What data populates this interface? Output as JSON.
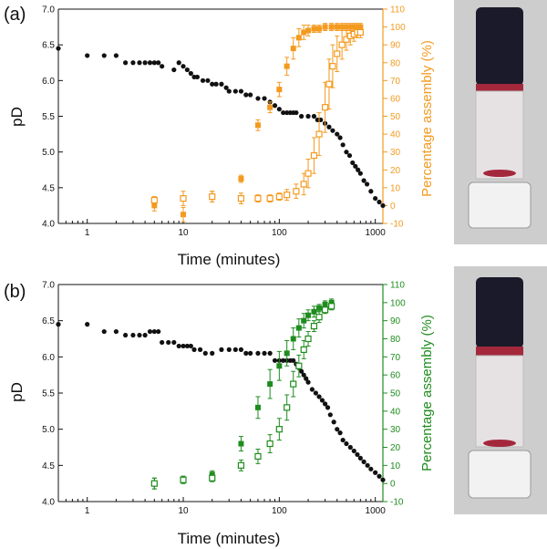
{
  "panels": [
    {
      "label": "(a)",
      "accent": "#F39A1F",
      "xlabel": "Time (minutes)",
      "ylabel_left": "pD",
      "ylabel_right": "Percentage assembly (%)"
    },
    {
      "label": "(b)",
      "accent": "#1E8C1E",
      "xlabel": "Time (minutes)",
      "ylabel_left": "pD",
      "ylabel_right": "Percentage assembly (%)"
    }
  ],
  "chart_data": [
    {
      "type": "scatter",
      "panel": "(a)",
      "xlabel": "Time (minutes)",
      "ylabel": "pD",
      "y2label": "Percentage assembly (%)",
      "xscale": "log",
      "xlim": [
        0.5,
        1200
      ],
      "ylim": [
        4.0,
        7.0
      ],
      "y2lim": [
        -10,
        110
      ],
      "xticks": [
        "1",
        "10",
        "100",
        "1000"
      ],
      "yticks": [
        "4.0",
        "4.5",
        "5.0",
        "5.5",
        "6.0",
        "6.5",
        "7.0"
      ],
      "y2ticks": [
        "-10",
        "0",
        "10",
        "20",
        "30",
        "40",
        "50",
        "60",
        "70",
        "80",
        "90",
        "100",
        "110"
      ],
      "series": [
        {
          "style": "black-filled-circle",
          "axis": "left",
          "x": [
            0.5,
            1,
            1.5,
            2,
            2.5,
            3,
            3.5,
            4,
            4.5,
            5,
            5.5,
            6,
            8,
            9,
            10,
            11,
            12,
            13,
            14,
            16,
            18,
            20,
            22,
            25,
            28,
            30,
            35,
            40,
            45,
            50,
            60,
            70,
            80,
            90,
            100,
            110,
            120,
            130,
            140,
            150,
            170,
            200,
            230,
            250,
            270,
            300,
            330,
            360,
            400,
            430,
            460,
            500,
            540,
            580,
            620,
            660,
            700,
            760,
            820,
            900,
            1000,
            1100,
            1200
          ],
          "y": [
            6.45,
            6.35,
            6.35,
            6.35,
            6.25,
            6.25,
            6.25,
            6.25,
            6.25,
            6.25,
            6.25,
            6.2,
            6.15,
            6.25,
            6.2,
            6.15,
            6.1,
            6.05,
            6.05,
            6.0,
            6.0,
            5.95,
            5.95,
            5.95,
            5.9,
            5.85,
            5.85,
            5.85,
            5.8,
            5.8,
            5.75,
            5.75,
            5.7,
            5.65,
            5.6,
            5.55,
            5.55,
            5.55,
            5.55,
            5.55,
            5.5,
            5.5,
            5.5,
            5.45,
            5.45,
            5.4,
            5.35,
            5.3,
            5.25,
            5.2,
            5.1,
            5.0,
            4.95,
            4.85,
            4.8,
            4.75,
            4.7,
            4.6,
            4.55,
            4.45,
            4.35,
            4.3,
            4.25
          ]
        },
        {
          "style": "accent-filled-square",
          "axis": "right",
          "x": [
            5,
            10,
            20,
            40,
            60,
            80,
            100,
            120,
            140,
            160,
            180,
            200,
            230,
            260,
            300,
            350,
            400,
            450,
            500,
            550,
            600,
            650,
            700
          ],
          "y": [
            0,
            -5,
            5,
            15,
            45,
            55,
            65,
            78,
            88,
            94,
            97,
            98,
            99,
            99,
            100,
            100,
            100,
            100,
            100,
            100,
            100,
            100,
            100
          ],
          "err": [
            3,
            4,
            3,
            2,
            3,
            3,
            4,
            5,
            6,
            5,
            4,
            3,
            2,
            2,
            2,
            2,
            2,
            2,
            2,
            2,
            2,
            2,
            2
          ]
        },
        {
          "style": "accent-open-square",
          "axis": "right",
          "x": [
            5,
            10,
            20,
            40,
            60,
            80,
            100,
            120,
            150,
            180,
            200,
            230,
            260,
            300,
            330,
            360,
            400,
            450,
            500,
            550,
            600,
            650,
            700
          ],
          "y": [
            3,
            4,
            5,
            4,
            4,
            4,
            5,
            6,
            8,
            12,
            18,
            28,
            40,
            55,
            68,
            78,
            85,
            90,
            93,
            95,
            96,
            97,
            97
          ],
          "err": [
            2,
            4,
            3,
            3,
            2,
            2,
            2,
            3,
            4,
            6,
            8,
            10,
            12,
            14,
            14,
            12,
            10,
            8,
            6,
            5,
            4,
            3,
            3
          ]
        }
      ]
    },
    {
      "type": "scatter",
      "panel": "(b)",
      "xlabel": "Time (minutes)",
      "ylabel": "pD",
      "y2label": "Percentage assembly (%)",
      "xscale": "log",
      "xlim": [
        0.5,
        1200
      ],
      "ylim": [
        4.0,
        7.0
      ],
      "y2lim": [
        -10,
        110
      ],
      "xticks": [
        "1",
        "10",
        "100",
        "1000"
      ],
      "yticks": [
        "4.0",
        "4.5",
        "5.0",
        "5.5",
        "6.0",
        "6.5",
        "7.0"
      ],
      "y2ticks": [
        "-10",
        "0",
        "10",
        "20",
        "30",
        "40",
        "50",
        "60",
        "70",
        "80",
        "90",
        "100",
        "110"
      ],
      "series": [
        {
          "style": "black-filled-circle",
          "axis": "left",
          "x": [
            0.5,
            1,
            1.5,
            2,
            2.5,
            3,
            3.5,
            4,
            4.5,
            5,
            5.5,
            6,
            7,
            8,
            9,
            10,
            11,
            12,
            13,
            15,
            17,
            20,
            25,
            30,
            35,
            40,
            45,
            50,
            60,
            70,
            80,
            90,
            100,
            110,
            120,
            130,
            140,
            150,
            160,
            170,
            180,
            190,
            200,
            220,
            240,
            260,
            280,
            300,
            320,
            340,
            370,
            400,
            430,
            460,
            500,
            550,
            600,
            650,
            700,
            760,
            830,
            900,
            1000,
            1100,
            1200
          ],
          "y": [
            6.45,
            6.45,
            6.35,
            6.35,
            6.3,
            6.3,
            6.3,
            6.3,
            6.35,
            6.35,
            6.35,
            6.2,
            6.2,
            6.2,
            6.15,
            6.15,
            6.15,
            6.15,
            6.1,
            6.1,
            6.05,
            6.05,
            6.1,
            6.1,
            6.1,
            6.1,
            6.05,
            6.05,
            6.05,
            6.05,
            6.05,
            5.95,
            5.95,
            5.95,
            5.95,
            5.95,
            5.95,
            5.9,
            5.85,
            5.8,
            5.75,
            5.7,
            5.65,
            5.55,
            5.5,
            5.45,
            5.4,
            5.35,
            5.3,
            5.2,
            5.1,
            5.0,
            4.95,
            4.85,
            4.8,
            4.75,
            4.7,
            4.65,
            4.6,
            4.55,
            4.5,
            4.45,
            4.4,
            4.35,
            4.3
          ]
        },
        {
          "style": "accent-filled-square",
          "axis": "right",
          "x": [
            5,
            10,
            20,
            40,
            60,
            80,
            100,
            120,
            140,
            160,
            180,
            200,
            230,
            260,
            300,
            350
          ],
          "y": [
            0,
            2,
            5,
            22,
            42,
            55,
            65,
            72,
            80,
            86,
            90,
            93,
            95,
            97,
            99,
            100
          ],
          "err": [
            3,
            2,
            2,
            4,
            6,
            8,
            8,
            7,
            6,
            5,
            4,
            3,
            3,
            2,
            2,
            2
          ]
        },
        {
          "style": "accent-open-square",
          "axis": "right",
          "x": [
            5,
            10,
            20,
            40,
            60,
            80,
            100,
            120,
            140,
            160,
            180,
            200,
            230,
            260,
            300,
            350
          ],
          "y": [
            0,
            2,
            3,
            10,
            15,
            22,
            30,
            42,
            55,
            65,
            74,
            80,
            87,
            92,
            96,
            98
          ],
          "err": [
            3,
            2,
            2,
            3,
            4,
            5,
            6,
            7,
            7,
            6,
            5,
            4,
            3,
            3,
            2,
            2
          ]
        }
      ]
    }
  ],
  "photo_colors": {
    "background": "#cdcdcd",
    "dark_liquid": "#1a1a2a",
    "red_band": "#a4283c",
    "glass": "#e6e2e4",
    "cap": "#f2f2f2"
  }
}
